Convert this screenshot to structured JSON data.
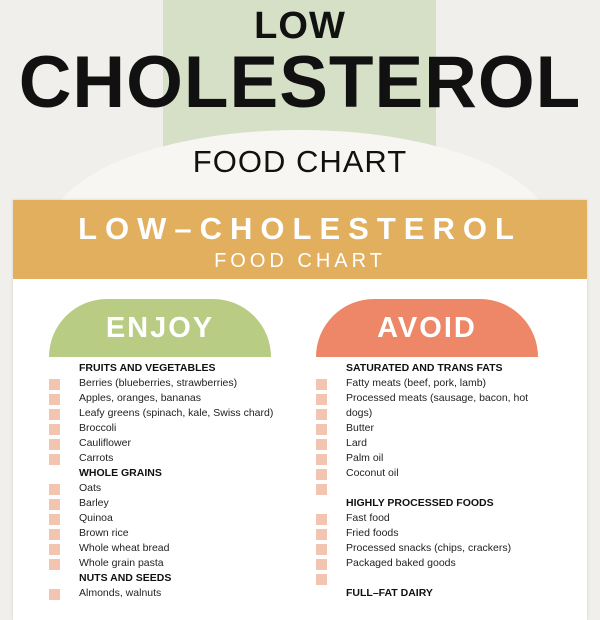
{
  "hero": {
    "line1": "LOW",
    "line2": "CHOLESTEROL",
    "line3": "FOOD CHART"
  },
  "card": {
    "title": "LOW–CHOLESTEROL",
    "subtitle": "FOOD CHART"
  },
  "enjoy": {
    "label": "ENJOY",
    "rows": [
      {
        "text": "FRUITS AND VEGETABLES",
        "heading": true
      },
      {
        "text": "Berries (blueberries, strawberries)"
      },
      {
        "text": "Apples, oranges, bananas"
      },
      {
        "text": "Leafy greens (spinach, kale, Swiss chard)"
      },
      {
        "text": "Broccoli"
      },
      {
        "text": "Cauliflower"
      },
      {
        "text": "Carrots"
      },
      {
        "text": "WHOLE GRAINS",
        "heading": true
      },
      {
        "text": "Oats"
      },
      {
        "text": "Barley"
      },
      {
        "text": "Quinoa"
      },
      {
        "text": "Brown rice"
      },
      {
        "text": "Whole wheat bread"
      },
      {
        "text": "Whole grain pasta"
      },
      {
        "text": "NUTS AND SEEDS",
        "heading": true
      },
      {
        "text": "Almonds, walnuts"
      }
    ]
  },
  "avoid": {
    "label": "AVOID",
    "rows": [
      {
        "text": "SATURATED AND TRANS FATS",
        "heading": true
      },
      {
        "text": "Fatty meats (beef, pork, lamb)"
      },
      {
        "text": "Processed meats (sausage, bacon, hot"
      },
      {
        "text": "dogs)"
      },
      {
        "text": "Butter"
      },
      {
        "text": "Lard"
      },
      {
        "text": "Palm oil"
      },
      {
        "text": "Coconut oil"
      },
      {
        "text": "",
        "box": true
      },
      {
        "text": "HIGHLY PROCESSED FOODS",
        "heading": true
      },
      {
        "text": "Fast food"
      },
      {
        "text": "Fried foods"
      },
      {
        "text": "Processed snacks (chips, crackers)"
      },
      {
        "text": "Packaged baked goods"
      },
      {
        "text": "",
        "box": true
      },
      {
        "text": "FULL–FAT DAIRY",
        "heading": true
      }
    ]
  },
  "colors": {
    "header": "#e1af5e",
    "enjoy": "#b9cc83",
    "avoid": "#ee8768",
    "checkbox": "#f3c4b0",
    "band": "#d6e0c6"
  }
}
